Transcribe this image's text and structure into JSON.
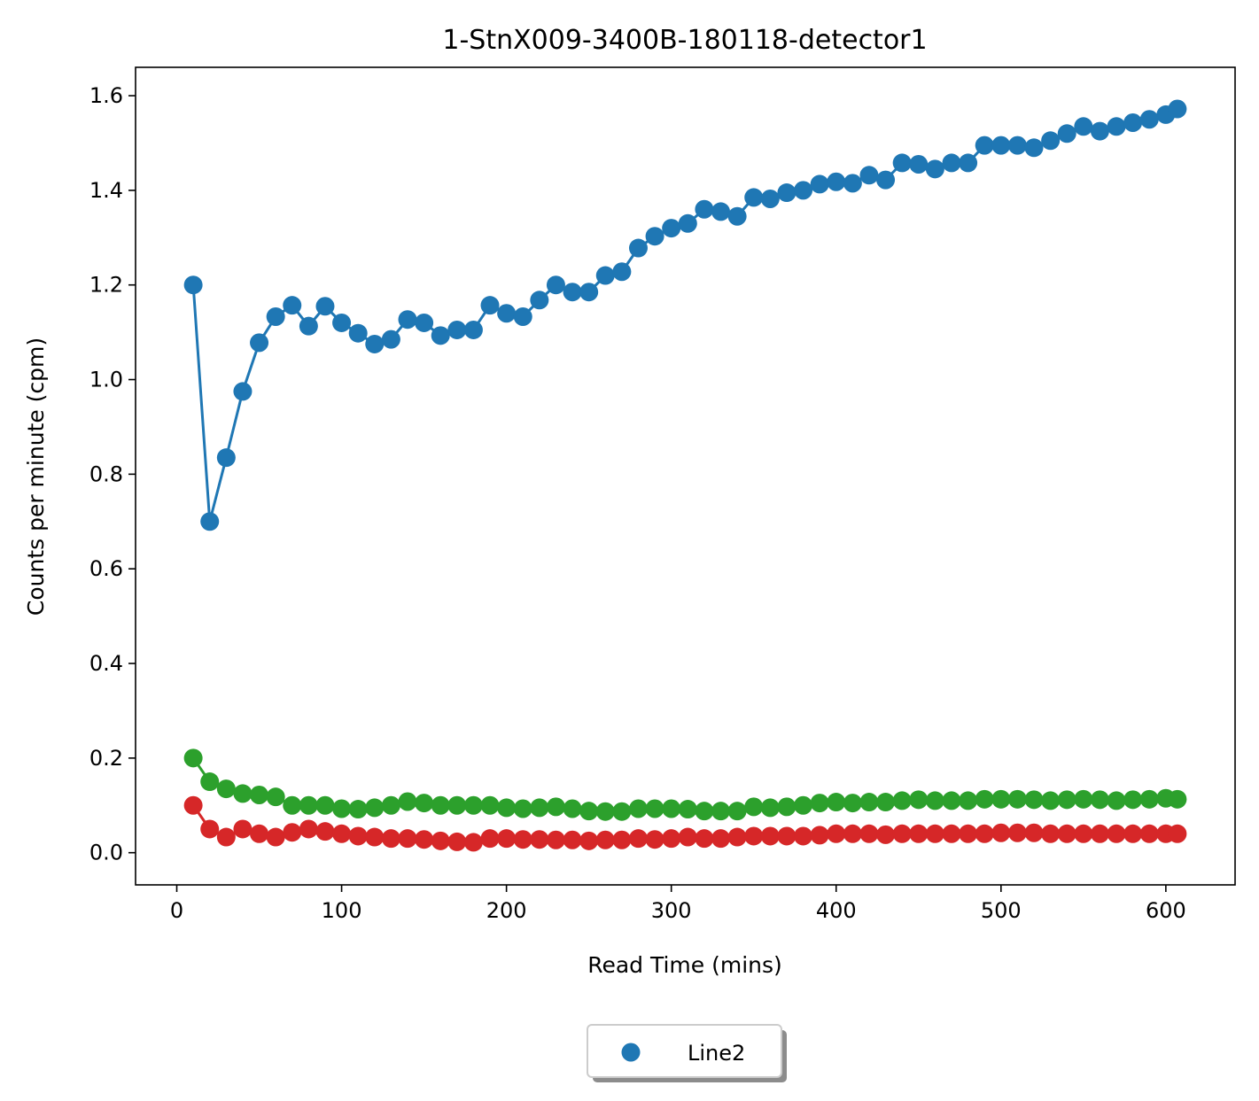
{
  "chart_data": {
    "type": "line",
    "title": "1-StnX009-3400B-180118-detector1",
    "xlabel": "Read Time (mins)",
    "ylabel": "Counts per minute (cpm)",
    "xlim": [
      -25,
      642
    ],
    "ylim": [
      -0.068,
      1.66
    ],
    "xticks": [
      0,
      100,
      200,
      300,
      400,
      500,
      600
    ],
    "xtick_labels": [
      "0",
      "100",
      "200",
      "300",
      "400",
      "500",
      "600"
    ],
    "yticks": [
      0.0,
      0.2,
      0.4,
      0.6,
      0.8,
      1.0,
      1.2,
      1.4,
      1.6
    ],
    "ytick_labels": [
      "0.0",
      "0.2",
      "0.4",
      "0.6",
      "0.8",
      "1.0",
      "1.2",
      "1.4",
      "1.6"
    ],
    "grid": false,
    "legend_position": "bottom-center",
    "legend": [
      "Line2"
    ],
    "x": [
      10,
      20,
      30,
      40,
      50,
      60,
      70,
      80,
      90,
      100,
      110,
      120,
      130,
      140,
      150,
      160,
      170,
      180,
      190,
      200,
      210,
      220,
      230,
      240,
      250,
      260,
      270,
      280,
      290,
      300,
      310,
      320,
      330,
      340,
      350,
      360,
      370,
      380,
      390,
      400,
      410,
      420,
      430,
      440,
      450,
      460,
      470,
      480,
      490,
      500,
      510,
      520,
      530,
      540,
      550,
      560,
      570,
      580,
      590,
      600,
      607
    ],
    "series": [
      {
        "color": "#1f77b4",
        "values": [
          1.2,
          0.7,
          0.835,
          0.975,
          1.078,
          1.133,
          1.157,
          1.113,
          1.155,
          1.12,
          1.098,
          1.075,
          1.085,
          1.127,
          1.12,
          1.093,
          1.105,
          1.105,
          1.157,
          1.14,
          1.133,
          1.168,
          1.2,
          1.185,
          1.185,
          1.22,
          1.228,
          1.278,
          1.303,
          1.32,
          1.33,
          1.36,
          1.355,
          1.345,
          1.385,
          1.382,
          1.395,
          1.4,
          1.413,
          1.418,
          1.415,
          1.432,
          1.422,
          1.458,
          1.455,
          1.445,
          1.458,
          1.458,
          1.495,
          1.495,
          1.495,
          1.49,
          1.505,
          1.52,
          1.535,
          1.525,
          1.535,
          1.543,
          1.55,
          1.56,
          1.572
        ]
      },
      {
        "color": "#2ca02c",
        "values": [
          0.2,
          0.15,
          0.135,
          0.125,
          0.122,
          0.118,
          0.1,
          0.1,
          0.1,
          0.093,
          0.092,
          0.095,
          0.1,
          0.108,
          0.105,
          0.1,
          0.1,
          0.1,
          0.1,
          0.095,
          0.093,
          0.095,
          0.097,
          0.093,
          0.088,
          0.087,
          0.087,
          0.093,
          0.093,
          0.093,
          0.092,
          0.088,
          0.088,
          0.088,
          0.097,
          0.095,
          0.097,
          0.1,
          0.105,
          0.107,
          0.105,
          0.107,
          0.107,
          0.11,
          0.112,
          0.11,
          0.11,
          0.11,
          0.113,
          0.113,
          0.113,
          0.112,
          0.11,
          0.112,
          0.113,
          0.112,
          0.11,
          0.112,
          0.113,
          0.115,
          0.113
        ]
      },
      {
        "color": "#d62728",
        "values": [
          0.1,
          0.05,
          0.033,
          0.05,
          0.04,
          0.033,
          0.043,
          0.05,
          0.045,
          0.04,
          0.035,
          0.033,
          0.03,
          0.03,
          0.028,
          0.025,
          0.023,
          0.022,
          0.03,
          0.03,
          0.028,
          0.028,
          0.027,
          0.027,
          0.025,
          0.027,
          0.027,
          0.03,
          0.028,
          0.03,
          0.033,
          0.03,
          0.03,
          0.033,
          0.035,
          0.035,
          0.035,
          0.035,
          0.037,
          0.04,
          0.04,
          0.04,
          0.038,
          0.04,
          0.04,
          0.04,
          0.04,
          0.04,
          0.04,
          0.042,
          0.042,
          0.042,
          0.04,
          0.04,
          0.04,
          0.04,
          0.04,
          0.04,
          0.04,
          0.04,
          0.04
        ]
      }
    ]
  }
}
